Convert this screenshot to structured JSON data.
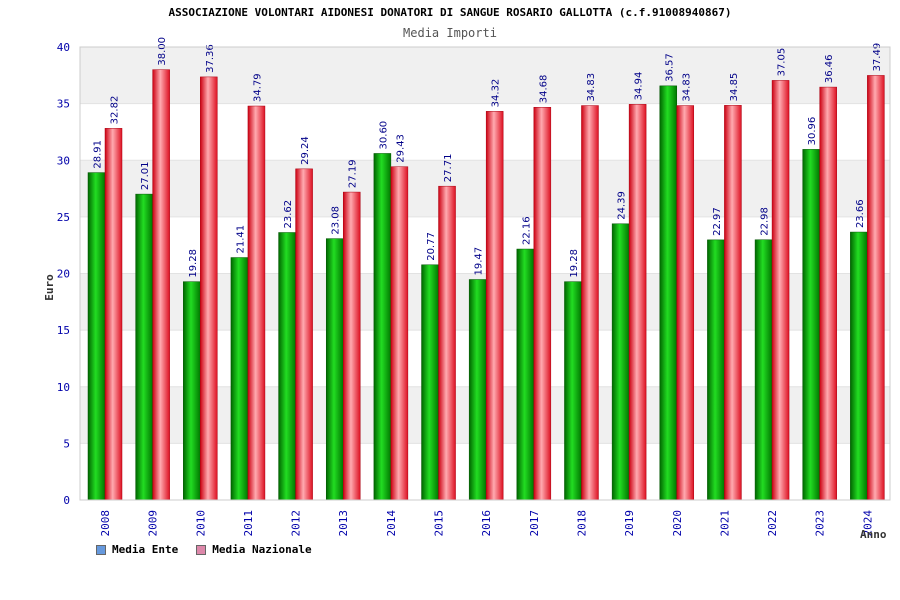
{
  "chart_data": {
    "type": "bar",
    "title": "ASSOCIAZIONE VOLONTARI AIDONESI DONATORI DI SANGUE ROSARIO GALLOTTA (c.f.91008940867)",
    "subtitle": "Media Importi",
    "xlabel": "Anno",
    "ylabel": "Euro",
    "ylim": [
      0,
      40
    ],
    "yticks": [
      0,
      5,
      10,
      15,
      20,
      25,
      30,
      35,
      40
    ],
    "categories": [
      "2008",
      "2009",
      "2010",
      "2011",
      "2012",
      "2013",
      "2014",
      "2015",
      "2016",
      "2017",
      "2018",
      "2019",
      "2020",
      "2021",
      "2022",
      "2023",
      "2024"
    ],
    "series": [
      {
        "name": "Media Ente",
        "color": "#00aa00",
        "values": [
          28.91,
          27.01,
          19.28,
          21.41,
          23.62,
          23.08,
          30.6,
          20.77,
          19.47,
          22.16,
          19.28,
          24.39,
          36.57,
          22.97,
          22.98,
          30.96,
          23.66
        ]
      },
      {
        "name": "Media Nazionale",
        "color": "#ee2233",
        "values": [
          32.82,
          38.0,
          37.36,
          34.79,
          29.24,
          27.19,
          29.43,
          27.71,
          34.32,
          34.68,
          34.83,
          34.94,
          34.83,
          34.85,
          37.05,
          36.46,
          37.49
        ]
      }
    ],
    "legend": [
      {
        "label": "Media Ente",
        "color": "#6699dd"
      },
      {
        "label": "Media Nazionale",
        "color": "#dd88aa"
      }
    ]
  }
}
